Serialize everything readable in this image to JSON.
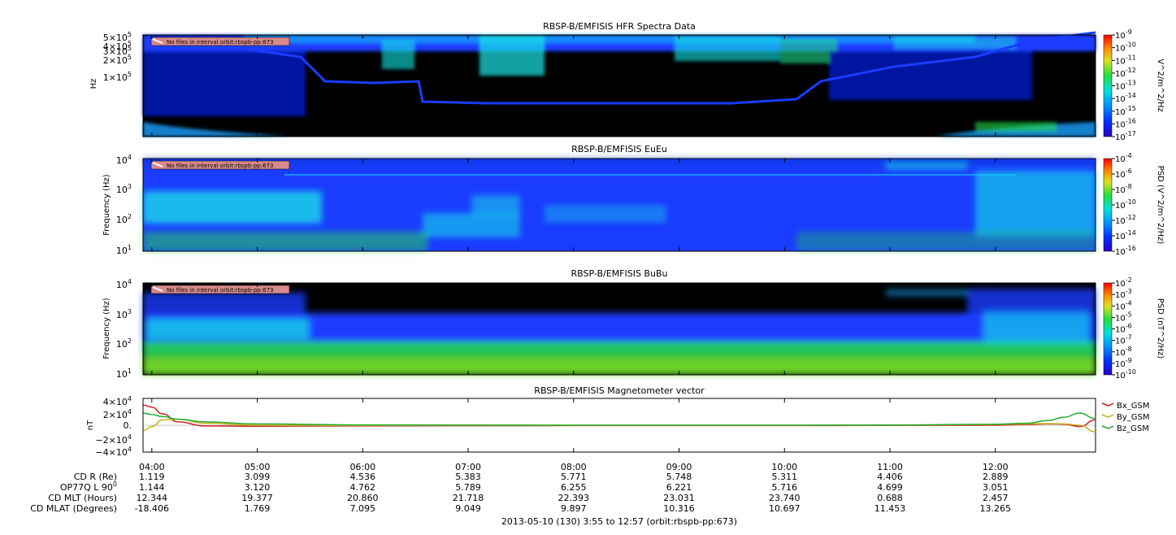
{
  "colors": {
    "background": "#000000",
    "spectrogram_blue": "#1a3cff",
    "spectrogram_cyan": "#19e6e6",
    "spectrogram_green": "#22dd44",
    "badge_bg": "#d88a8a",
    "bx": "#cc2222",
    "by": "#c8b020",
    "bz": "#22aa33"
  },
  "no_files_badge": "No files in interval orbit:rbspb-pp:673",
  "x_axis": {
    "time_labels": [
      "04:00",
      "05:00",
      "06:00",
      "07:00",
      "08:00",
      "09:00",
      "10:00",
      "11:00",
      "12:00"
    ],
    "title": "2013-05-10 (130) 3:55 to 12:57 (orbit:rbspb-pp:673)",
    "ephemeris": [
      {
        "label": "CD R (Re)",
        "values": [
          "1.119",
          "3.099",
          "4.536",
          "5.383",
          "5.771",
          "5.748",
          "5.311",
          "4.406",
          "2.889"
        ]
      },
      {
        "label": "OP77Q L 90",
        "label_sup": "0",
        "values": [
          "1.144",
          "3.120",
          "4.762",
          "5.789",
          "6.255",
          "6.221",
          "5.716",
          "4.699",
          "3.051"
        ]
      },
      {
        "label": "CD MLT (Hours)",
        "values": [
          "12.344",
          "19.377",
          "20.860",
          "21.718",
          "22.393",
          "23.031",
          "23.740",
          "0.688",
          "2.457"
        ]
      },
      {
        "label": "CD MLAT (Degrees)",
        "values": [
          "-18.406",
          "1.769",
          "7.095",
          "9.049",
          "9.897",
          "10.316",
          "10.697",
          "11.453",
          "13.265"
        ]
      }
    ]
  },
  "chart_data": [
    {
      "type": "heatmap",
      "title": "RBSP-B/EMFISIS  HFR Spectra Data",
      "ylabel": "Hz",
      "y_scale": "log",
      "y_tick_labels": [
        {
          "m": "5",
          "e": "5"
        },
        {
          "m": "4",
          "e": "5"
        },
        {
          "m": "3",
          "e": "5"
        },
        {
          "m": "2",
          "e": "5"
        },
        {
          "m": "1",
          "e": "5"
        }
      ],
      "colorbar": {
        "label": "V^2/m^2/Hz",
        "ticks": [
          "-9",
          "-10",
          "-11",
          "-12",
          "-13",
          "-14",
          "-15",
          "-16",
          "-17"
        ]
      }
    },
    {
      "type": "heatmap",
      "title": "RBSP-B/EMFISIS  EuEu",
      "ylabel": "Frequency (Hz)",
      "y_scale": "log",
      "y_ticks": [
        "4",
        "3",
        "2",
        "1"
      ],
      "colorbar": {
        "label": "PSD (V^2/m^2/Hz)",
        "ticks": [
          "-4",
          "-6",
          "-8",
          "-10",
          "-12",
          "-14",
          "-16"
        ]
      }
    },
    {
      "type": "heatmap",
      "title": "RBSP-B/EMFISIS  BuBu",
      "ylabel": "Frequency (Hz)",
      "y_scale": "log",
      "y_ticks": [
        "4",
        "3",
        "2",
        "1"
      ],
      "colorbar": {
        "label": "PSD (nT^2/Hz)",
        "ticks": [
          "-2",
          "-3",
          "-4",
          "-5",
          "-6",
          "-7",
          "-8",
          "-9",
          "-10"
        ]
      }
    },
    {
      "type": "line",
      "title": "RBSP-B/EMFISIS  Magnetometer vector",
      "ylabel": "nT",
      "ylim": [
        -40000,
        40000
      ],
      "y_tick_labels": [
        {
          "prefix": "4×10",
          "exp": "4"
        },
        {
          "prefix": "2×10",
          "exp": "4"
        },
        {
          "prefix": "0.",
          "exp": ""
        },
        {
          "prefix": "−2×10",
          "exp": "4"
        },
        {
          "prefix": "−4×10",
          "exp": "4"
        }
      ],
      "x_hours": [
        3.92,
        4.0,
        4.1,
        4.25,
        4.5,
        5.0,
        6.0,
        8.0,
        10.0,
        11.0,
        12.0,
        12.3,
        12.5,
        12.65,
        12.8,
        12.95
      ],
      "series": [
        {
          "name": "Bx_GSM",
          "values": [
            30000,
            27000,
            17000,
            5000,
            -1000,
            -1500,
            -1000,
            -500,
            -500,
            -300,
            0,
            1000,
            2000,
            1500,
            -2000,
            8000
          ]
        },
        {
          "name": "By_GSM",
          "values": [
            -8000,
            -2000,
            8000,
            9000,
            3000,
            0,
            -300,
            0,
            0,
            0,
            1000,
            2000,
            2500,
            2000,
            0,
            -10000
          ]
        },
        {
          "name": "Bz_GSM",
          "values": [
            18000,
            16000,
            13000,
            9000,
            5000,
            2000,
            500,
            0,
            0,
            300,
            1500,
            3000,
            7000,
            12000,
            18000,
            10000
          ]
        }
      ]
    }
  ]
}
